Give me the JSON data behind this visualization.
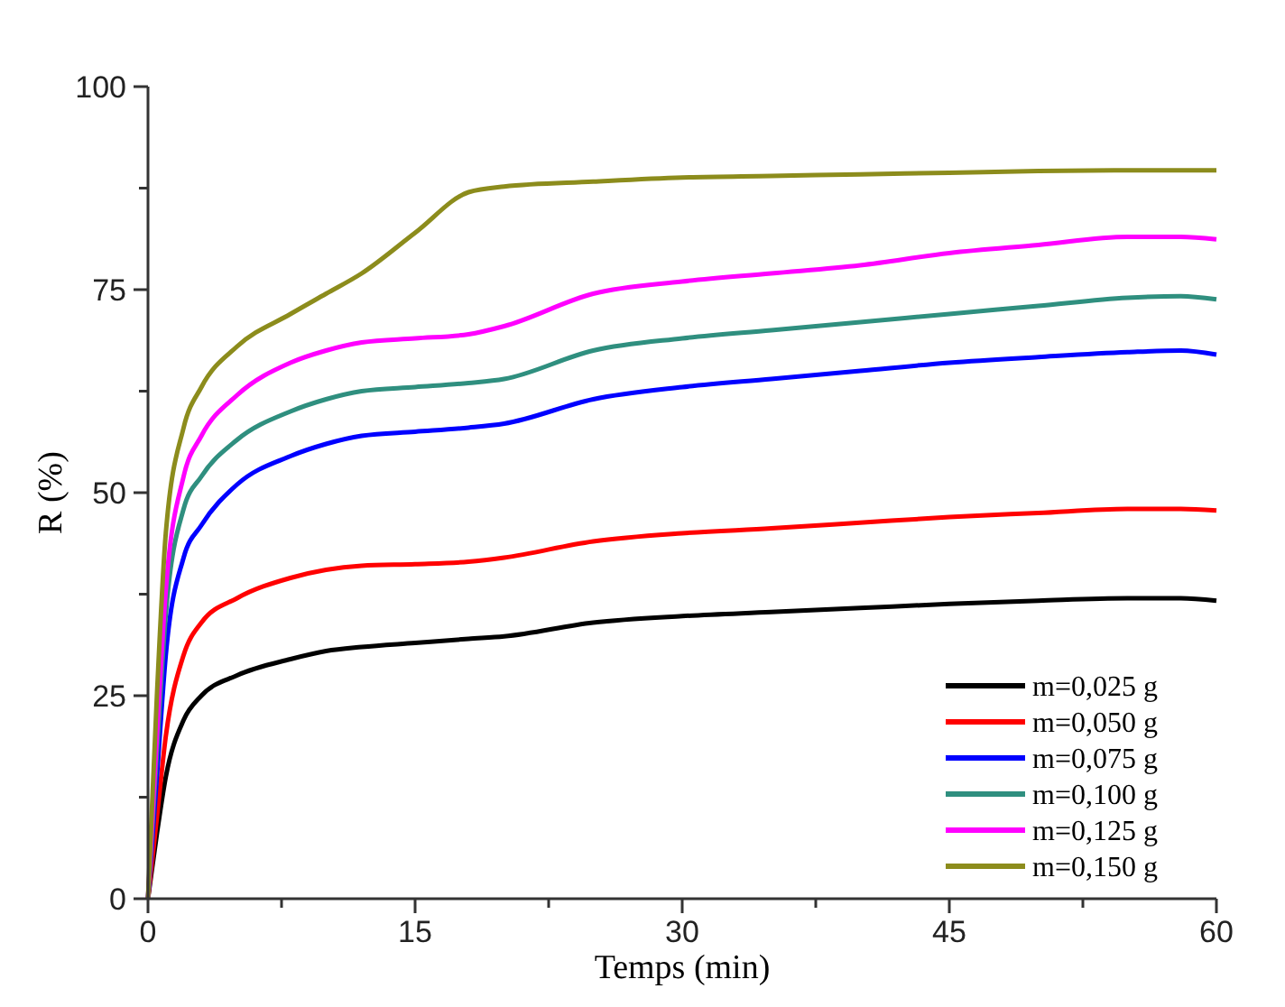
{
  "chart_data": {
    "type": "line",
    "xlabel": "Temps (min)",
    "ylabel": "R (%)",
    "x": [
      0,
      0.5,
      1,
      2,
      3,
      5,
      8,
      10,
      12,
      15,
      18,
      20,
      25,
      30,
      35,
      40,
      45,
      50,
      55,
      58,
      60
    ],
    "xlim": [
      0,
      60
    ],
    "ylim": [
      0,
      100
    ],
    "xticks": [
      0,
      {
        "value": 7.5,
        "label": null
      },
      15,
      {
        "value": 22.5,
        "label": null
      },
      30,
      {
        "value": 37.5,
        "label": null
      },
      45,
      {
        "value": 52.5,
        "label": null
      },
      60
    ],
    "yticks": [
      0,
      {
        "value": 12.5,
        "label": null
      },
      25,
      {
        "value": 37.5,
        "label": null
      },
      50,
      {
        "value": 62.5,
        "label": null
      },
      75,
      {
        "value": 87.5,
        "label": null
      },
      100
    ],
    "legend": "bottom right",
    "marker": "none",
    "line_style": "solid",
    "grid": false,
    "series": [
      {
        "name": "m=0,025 g",
        "color": "#000000",
        "values": [
          0,
          8,
          15,
          22,
          25,
          27.5,
          29.5,
          30.5,
          31,
          31.5,
          32,
          32.3,
          34,
          34.8,
          35.3,
          35.8,
          36.3,
          36.7,
          37,
          37,
          36.7
        ]
      },
      {
        "name": "m=0,050 g",
        "color": "#ff0000",
        "values": [
          0,
          10,
          20,
          30,
          34,
          37,
          39.5,
          40.5,
          41,
          41.2,
          41.5,
          42,
          44,
          45,
          45.6,
          46.3,
          47,
          47.5,
          48,
          48,
          47.8
        ]
      },
      {
        "name": "m=0,075 g",
        "color": "#0000ff",
        "values": [
          0,
          15,
          30,
          42,
          46,
          51,
          54.5,
          56,
          57,
          57.5,
          58,
          58.5,
          61.5,
          63,
          64,
          65,
          66,
          66.7,
          67.3,
          67.5,
          67
        ]
      },
      {
        "name": "m=0,100 g",
        "color": "#2f8f7f",
        "values": [
          0,
          18,
          35,
          48,
          52,
          56.5,
          60,
          61.5,
          62.5,
          63,
          63.5,
          64,
          67.5,
          69,
          70,
          71,
          72,
          73,
          74,
          74.2,
          73.8
        ]
      },
      {
        "name": "m=0,125 g",
        "color": "#ff00ff",
        "values": [
          0,
          20,
          38,
          52,
          57,
          62,
          66,
          67.5,
          68.5,
          69,
          69.5,
          70.5,
          74.5,
          76,
          77,
          78,
          79.5,
          80.5,
          81.5,
          81.5,
          81.2
        ]
      },
      {
        "name": "m=0,150 g",
        "color": "#8c8c1c",
        "values": [
          0,
          25,
          45,
          58,
          63,
          68,
          72,
          74.5,
          77,
          82,
          87,
          87.7,
          88.3,
          88.8,
          89,
          89.2,
          89.4,
          89.6,
          89.7,
          89.7,
          89.7
        ]
      }
    ]
  }
}
